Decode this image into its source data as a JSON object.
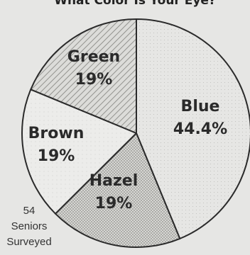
{
  "chart_data": {
    "type": "pie",
    "title": "What Color Is Your Eye?",
    "categories": [
      "Blue",
      "Hazel",
      "Brown",
      "Green"
    ],
    "values": [
      44.4,
      19,
      19,
      19
    ],
    "labels": [
      "44.4%",
      "19%",
      "19%",
      "19%"
    ],
    "colors": [
      "#e4e4e2",
      "#cfcfcc",
      "#ececea",
      "#d2d2cf"
    ],
    "legend": "none",
    "annotation": [
      "54",
      "Seniors",
      "Surveyed"
    ]
  }
}
